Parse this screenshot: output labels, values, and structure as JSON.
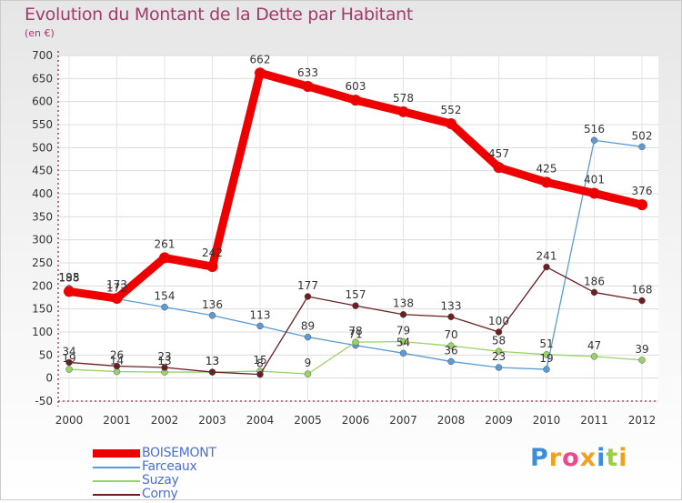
{
  "page": {
    "title": "Evolution du Montant de la Dette par Habitant",
    "subtitle": "(en €)",
    "logo": "Proxiti"
  },
  "colors": {
    "title": "#a33a6c",
    "axis": "#8c2a4e",
    "label": "#333333",
    "legend_text": "#4a6fd1"
  },
  "chart_data": {
    "type": "line",
    "title": "Evolution du Montant de la Dette par Habitant",
    "ylabel": "(en €)",
    "xlabel": "",
    "x": [
      "2000",
      "2001",
      "2002",
      "2003",
      "2004",
      "2005",
      "2006",
      "2007",
      "2008",
      "2009",
      "2010",
      "2011",
      "2012"
    ],
    "ylim": [
      -50,
      700
    ],
    "yticks": [
      -50,
      0,
      50,
      100,
      150,
      200,
      250,
      300,
      350,
      400,
      450,
      500,
      550,
      600,
      650,
      700
    ],
    "grid": true,
    "legend_position": "bottom-left",
    "series": [
      {
        "name": "BOISEMONT",
        "color": "#ee0000",
        "values": [
          188,
          173,
          261,
          242,
          662,
          633,
          603,
          578,
          552,
          457,
          425,
          401,
          376
        ]
      },
      {
        "name": "Farceaux",
        "color": "#5b9bd5",
        "values": [
          195,
          172,
          154,
          136,
          113,
          89,
          71,
          54,
          36,
          23,
          19,
          516,
          502
        ]
      },
      {
        "name": "Suzay",
        "color": "#99d366",
        "values": [
          19,
          14,
          13,
          13,
          15,
          9,
          78,
          79,
          70,
          58,
          51,
          47,
          39
        ]
      },
      {
        "name": "Corny",
        "color": "#6b1f23",
        "values": [
          34,
          26,
          23,
          13,
          8,
          177,
          157,
          138,
          133,
          100,
          241,
          186,
          168
        ]
      }
    ]
  }
}
